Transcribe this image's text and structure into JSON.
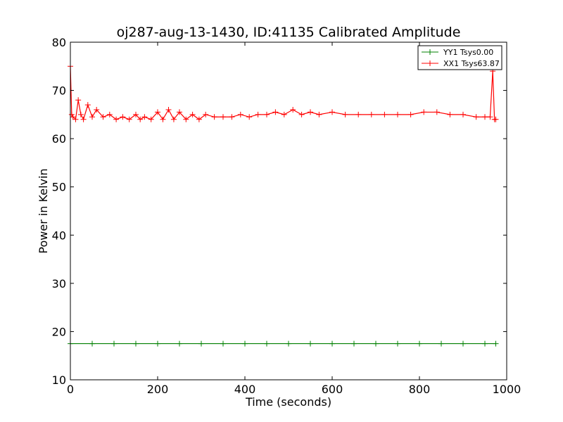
{
  "chart_data": {
    "type": "line",
    "title": "oj287-aug-13-1430, ID:41135 Calibrated Amplitude",
    "xlabel": "Time (seconds)",
    "ylabel": "Power in Kelvin",
    "xlim": [
      0,
      1000
    ],
    "ylim": [
      10,
      80
    ],
    "xticks": [
      0,
      200,
      400,
      600,
      800,
      1000
    ],
    "yticks": [
      10,
      20,
      30,
      40,
      50,
      60,
      70,
      80
    ],
    "grid": false,
    "legend_position": "top-right",
    "marker": "+",
    "series": [
      {
        "name": "YY1 Tsys0.00",
        "color": "#008000",
        "x": [
          0,
          50,
          100,
          150,
          200,
          250,
          300,
          350,
          400,
          450,
          500,
          550,
          600,
          650,
          700,
          750,
          800,
          850,
          900,
          950,
          975
        ],
        "values": [
          17.5,
          17.5,
          17.5,
          17.5,
          17.5,
          17.5,
          17.5,
          17.5,
          17.5,
          17.5,
          17.5,
          17.5,
          17.5,
          17.5,
          17.5,
          17.5,
          17.5,
          17.5,
          17.5,
          17.5,
          17.5
        ]
      },
      {
        "name": "XX1 Tsys63.87",
        "color": "#ff0000",
        "x": [
          0,
          3,
          6,
          12,
          18,
          24,
          30,
          40,
          50,
          60,
          75,
          90,
          105,
          120,
          135,
          150,
          160,
          170,
          185,
          200,
          212,
          225,
          237,
          250,
          265,
          280,
          295,
          310,
          330,
          350,
          370,
          390,
          410,
          430,
          450,
          470,
          490,
          510,
          530,
          550,
          570,
          600,
          630,
          660,
          690,
          720,
          750,
          780,
          810,
          840,
          870,
          900,
          930,
          950,
          962,
          968,
          972,
          975
        ],
        "values": [
          75,
          65,
          64.5,
          64,
          68,
          65,
          64,
          67,
          64.5,
          66,
          64.5,
          65,
          64,
          64.5,
          64,
          65,
          64,
          64.5,
          64,
          65.5,
          64,
          66,
          64,
          65.5,
          64,
          65,
          64,
          65,
          64.5,
          64.5,
          64.5,
          65,
          64.5,
          65,
          65,
          65.5,
          65,
          66,
          65,
          65.5,
          65,
          65.5,
          65,
          65,
          65,
          65,
          65,
          65,
          65.5,
          65.5,
          65,
          65,
          64.5,
          64.5,
          64.5,
          74,
          64,
          64
        ]
      }
    ]
  }
}
